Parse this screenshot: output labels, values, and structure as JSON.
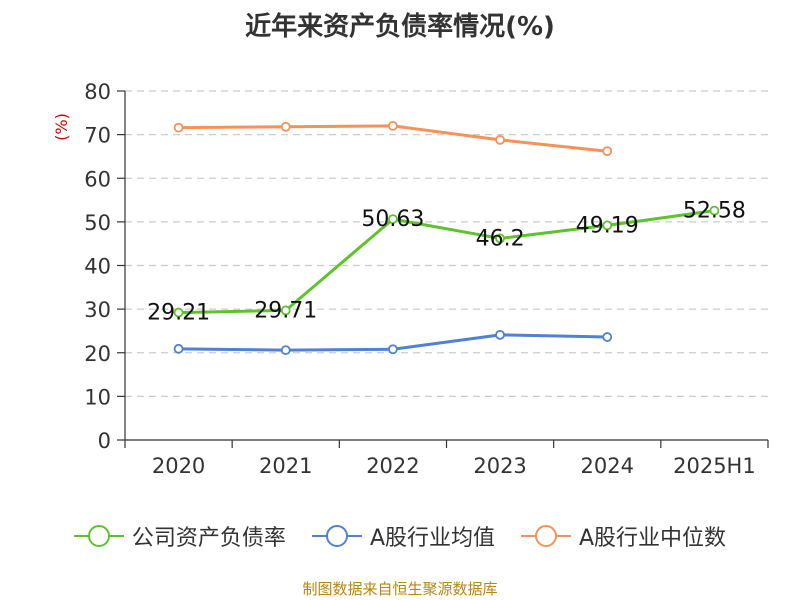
{
  "chart_data": {
    "type": "line",
    "title": "近年来资产负债率情况(%)",
    "ylabel": "(%)",
    "categories": [
      "2020",
      "2021",
      "2022",
      "2023",
      "2024",
      "2025H1"
    ],
    "ylim": [
      0,
      80
    ],
    "yticks": [
      0,
      10,
      20,
      30,
      40,
      50,
      60,
      70,
      80
    ],
    "grid": true,
    "legend_position": "bottom",
    "series": [
      {
        "name": "公司资产负债率",
        "color": "#5cc42a",
        "values": [
          29.21,
          29.71,
          50.63,
          46.2,
          49.19,
          52.58
        ],
        "labels": [
          "29.21",
          "29.71",
          "50.63",
          "46.2",
          "49.19",
          "52.58"
        ]
      },
      {
        "name": "A股行业均值",
        "color": "#4f81d4",
        "values": [
          20.9,
          20.6,
          20.8,
          24.1,
          23.6,
          null
        ]
      },
      {
        "name": "A股行业中位数",
        "color": "#f4925a",
        "values": [
          71.6,
          71.8,
          72.0,
          68.8,
          66.2,
          null
        ]
      }
    ]
  },
  "source": "制图数据来自恒生聚源数据库"
}
